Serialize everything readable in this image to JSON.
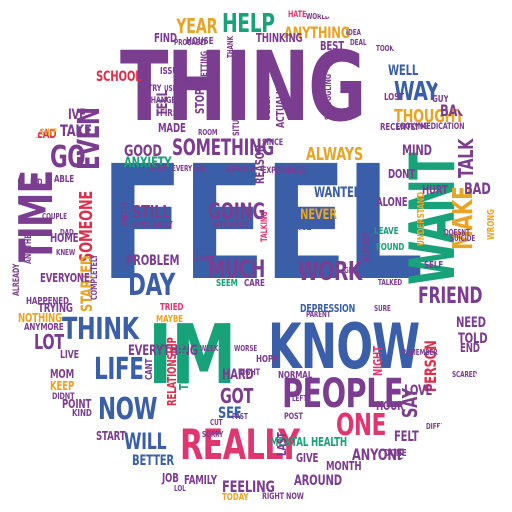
{
  "palette": {
    "blue": "#3a5fa8",
    "purple": "#7b3d8f",
    "green": "#18a27a",
    "pink": "#e0366f",
    "yellow": "#e7a526",
    "red": "#df2e4b",
    "gray": "#b8b8b8"
  },
  "words": {
    "feel": "FEEL",
    "im": "IM",
    "know": "KNOW",
    "thing": "THING",
    "want": "WANT",
    "people": "PEOPLE",
    "really": "REALLY",
    "time": "TIME",
    "think": "THINK",
    "something": "SOMETHING",
    "make": "MAKE",
    "one": "ONE",
    "help": "HELP",
    "year": "YEAR",
    "anything": "ANYTHING",
    "friend": "FRIEND",
    "work": "WORK",
    "much": "MUCH",
    "day": "DAY",
    "life": "LIFE",
    "now": "NOW",
    "go": "GO",
    "even": "EVEN",
    "always": "ALWAYS",
    "way": "WAY",
    "thought": "THOUGHT",
    "talk": "TALK",
    "going": "GOING",
    "still": "STILL",
    "got": "GOT",
    "will": "WILL",
    "anyone": "ANYONE",
    "feeling": "FEELING",
    "mental_health": "MENTAL HEALTH",
    "everything": "EVERYTHING",
    "lot": "LOT",
    "someone": "SOMEONE",
    "started": "STARTED",
    "good": "GOOD",
    "anxiety": "ANXIETY",
    "need": "NEED",
    "person": "PERSON",
    "say": "SAY",
    "never": "NEVER",
    "told": "TOLD",
    "bad": "BAD",
    "back": "BACK",
    "school": "SCHOOL",
    "take": "TAKE",
    "love": "LOVE",
    "felt": "FELT",
    "better": "BETTER",
    "family": "FAMILY",
    "around": "AROUND",
    "month": "MONTH",
    "relationship": "RELATIONSHIP",
    "problem": "PROBLEM",
    "mind": "MIND",
    "wanted": "WANTED",
    "home": "HOME",
    "see": "SEE",
    "hard": "HARD",
    "made": "MADE",
    "ive": "IVE",
    "everyone": "EVERYONE",
    "dont": "DONT",
    "well": "WELL",
    "best": "BEST",
    "thinking": "THINKING",
    "hate": "HATE",
    "world": "WORLD",
    "trying": "TRYING",
    "nothing": "NOTHING",
    "depression": "DEPRESSION",
    "end": "END",
    "alone": "ALONE",
    "start": "START",
    "mom": "MOM",
    "keep": "KEEP",
    "today": "TODAY",
    "give": "GIVE",
    "last": "LAST",
    "hour": "HOUR",
    "tell": "TELL",
    "head": "HEAD",
    "job": "JOB",
    "find": "FIND",
    "self": "SELF",
    "first": "FIRST",
    "sleep": "SLEEP",
    "actually": "ACTUALLY",
    "guy": "GUY",
    "hurt": "HURT",
    "live": "LIVE",
    "point": "POINT",
    "kind": "KIND",
    "tried": "TRIED",
    "therapist": "THERAPIST",
    "place": "PLACE",
    "without": "WITHOUT",
    "normal": "NORMAL",
    "seem": "SEEM",
    "care": "CARE",
    "stop": "STOP",
    "since": "SINCE",
    "done": "DONE",
    "night": "NIGHT",
    "happened": "HAPPENED",
    "anymore": "ANYMORE",
    "leave": "LEAVE",
    "different": "DIFFERENT",
    "post": "POST",
    "maybe": "MAYBE",
    "sure": "SURE",
    "happy": "HAPPY",
    "house": "HOUSE",
    "reason": "REASON",
    "experience": "EXPERIENCE",
    "advice": "ADVICE",
    "recently": "RECENTLY",
    "wrong": "WRONG",
    "understand": "UNDERSTAND",
    "im_small": "IM",
    "lost": "LOST",
    "able": "ABLE",
    "issue": "ISSUE",
    "already": "ALREADY",
    "another": "ANOTHER",
    "completely": "COMPLETELY",
    "situation": "SITUATION",
    "struggling": "STRUGGLING",
    "medication": "MEDICATION",
    "looking": "LOOKING",
    "change": "CHANGE",
    "try": "TRY",
    "kid": "KID",
    "shit": "SHIT",
    "fuck": "FUCK",
    "right": "RIGHT",
    "right_now": "RIGHT NOW",
    "didnt": "DIDNT",
    "cant": "CANT",
    "doesnt": "DOESNT",
    "couple": "COUPLE",
    "body": "BODY",
    "sorry": "SORRY",
    "constantly": "CONSTANTLY",
    "talking": "TALKING",
    "hope": "HOPE",
    "found": "FOUND",
    "remember": "REMEMBER",
    "almost": "ALMOST",
    "getting": "GETTING",
    "probably": "PROBABLY",
    "thank": "THANK",
    "took": "TOOK",
    "used": "USED",
    "left": "LEFT",
    "pretty": "PRETTY",
    "every_day": "EVERY DAY",
    "cut": "CUT",
    "year_old": "YEAR OLD",
    "suicide": "SUICIDE",
    "parent": "PARENT",
    "idea": "IDEA",
    "deal": "DEAL",
    "lol": "LOL",
    "dad": "DAD",
    "knew": "KNEW",
    "room": "ROOM",
    "scared": "SCARED",
    "talked": "TALKED",
    "person2": "GIRL",
    "whole": "WHOLE",
    "week": "WEEK",
    "worse": "WORSE",
    "past": "PAST"
  }
}
